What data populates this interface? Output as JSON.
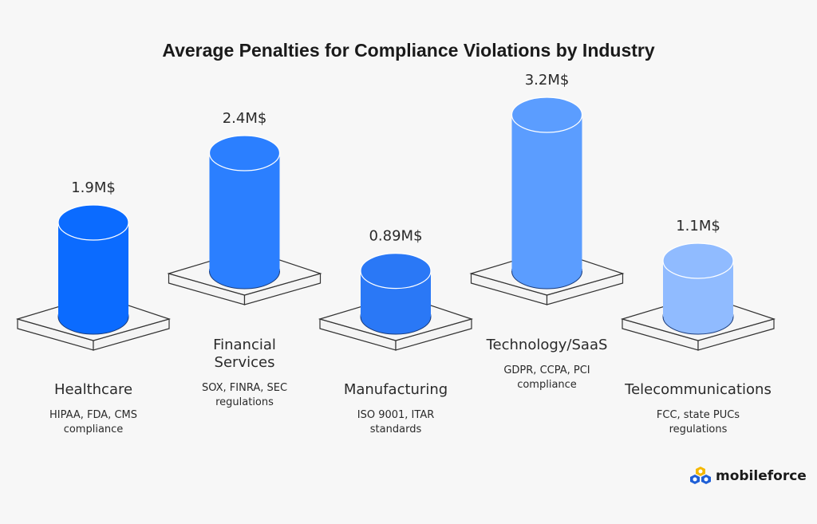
{
  "chart_data": {
    "type": "bar",
    "title": "Average Penalties for Compliance Violations by Industry",
    "xlabel": "",
    "ylabel": "",
    "categories": [
      "Healthcare",
      "Financial Services",
      "Manufacturing",
      "Technology/SaaS",
      "Telecommunications"
    ],
    "values": [
      1.9,
      2.4,
      0.89,
      3.2,
      1.1
    ],
    "value_labels": [
      "1.9M$",
      "2.4M$",
      "0.89M$",
      "3.2M$",
      "1.1M$"
    ],
    "name_lines": [
      [
        "Healthcare"
      ],
      [
        "Financial",
        "Services"
      ],
      [
        "Manufacturing"
      ],
      [
        "Technology/SaaS"
      ],
      [
        "Telecommunications"
      ]
    ],
    "subtitles": [
      [
        "HIPAA, FDA, CMS",
        "compliance"
      ],
      [
        "SOX, FINRA, SEC",
        "regulations"
      ],
      [
        "ISO 9001, ITAR",
        "standards"
      ],
      [
        "GDPR, CCPA, PCI",
        "compliance"
      ],
      [
        "FCC, state PUCs",
        "regulations"
      ]
    ],
    "colors": [
      "#0b6bff",
      "#2b7fff",
      "#2a78f6",
      "#5b9dff",
      "#90bbff"
    ],
    "unit": "M$"
  },
  "brand": {
    "name": "mobileforce"
  }
}
